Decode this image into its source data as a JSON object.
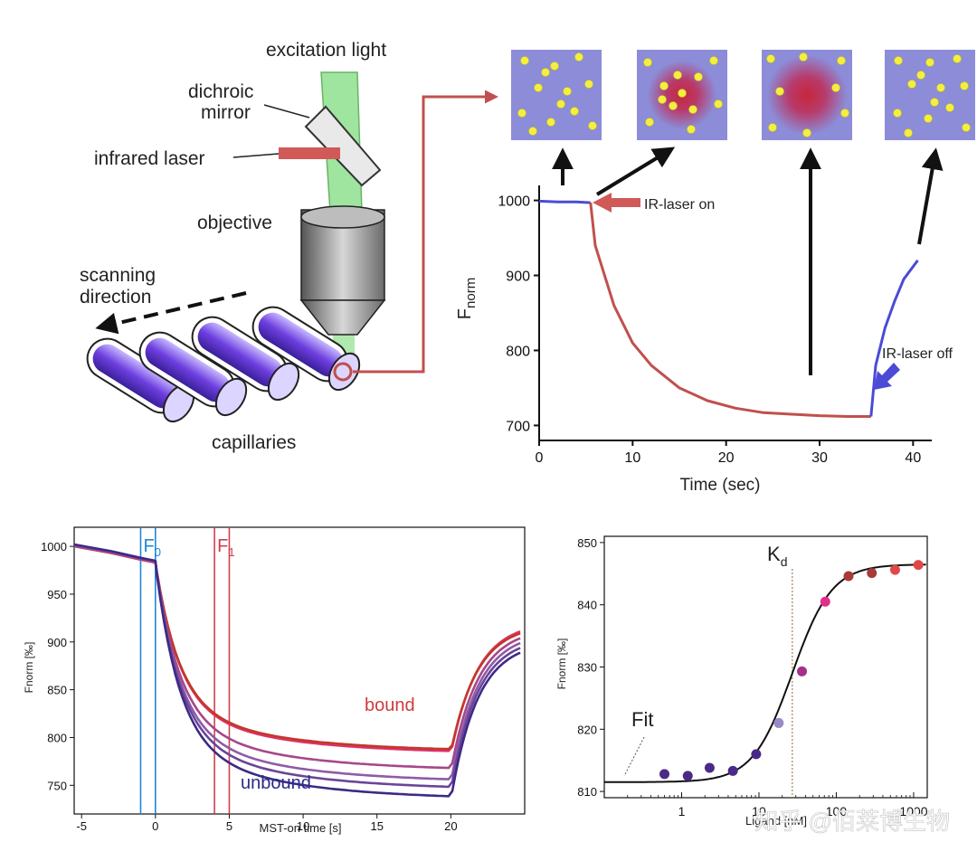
{
  "setup": {
    "excitation_light": "excitation light",
    "dichroic_mirror_1": "dichroic",
    "dichroic_mirror_2": "mirror",
    "infrared_laser": "infrared laser",
    "objective": "objective",
    "scanning_1": "scanning",
    "scanning_2": "direction",
    "capillaries": "capillaries"
  },
  "colors": {
    "red": "#c0504d",
    "blue": "#4b4bd6",
    "purple": "#4a2a86",
    "green": "#7fd07f",
    "pink": "#e0306a",
    "tile": "#8c8cd8"
  },
  "chart_data": [
    {
      "type": "line",
      "xlabel": "Time (sec)",
      "ylabel_main": "F",
      "ylabel_sub": "norm",
      "xlim": [
        0,
        42
      ],
      "ylim": [
        680,
        1020
      ],
      "xticks": [
        0,
        10,
        20,
        30,
        40
      ],
      "yticks": [
        700,
        800,
        900,
        1000
      ],
      "annotations": {
        "on": "IR-laser on",
        "off": "IR-laser off"
      },
      "series": [
        {
          "color": "#4b4bd6",
          "x": [
            0,
            2,
            4,
            5.5
          ],
          "y": [
            999,
            998,
            998,
            997
          ]
        },
        {
          "color": "#c0504d",
          "x": [
            5.5,
            6,
            8,
            10,
            12,
            15,
            18,
            21,
            24,
            27,
            30,
            33,
            35.5
          ],
          "y": [
            997,
            940,
            860,
            810,
            780,
            750,
            733,
            723,
            717,
            715,
            713,
            712,
            712
          ]
        },
        {
          "color": "#4b4bd6",
          "x": [
            35.5,
            36,
            37,
            38,
            39,
            40.5
          ],
          "y": [
            712,
            780,
            830,
            865,
            895,
            920
          ]
        }
      ]
    },
    {
      "type": "line",
      "xlabel": "MST-on time [s]",
      "ylabel": "Fnorm [‰]",
      "xlim": [
        -5.5,
        25
      ],
      "ylim": [
        720,
        1020
      ],
      "xticks": [
        -5,
        0,
        5,
        10,
        15,
        20
      ],
      "yticks": [
        750,
        800,
        850,
        900,
        950,
        1000
      ],
      "markers": [
        {
          "label": "F",
          "sub": "0",
          "color": "#1e88d8",
          "x": [
            -1,
            0
          ]
        },
        {
          "label": "F",
          "sub": "1",
          "color": "#d04050",
          "x": [
            4,
            5
          ]
        }
      ],
      "annotations": {
        "bound": "bound",
        "unbound": "unbound"
      },
      "pre": {
        "x": [
          -5.5,
          -3,
          -1,
          0
        ],
        "y": [
          1000,
          993,
          986,
          983
        ]
      },
      "series": [
        {
          "color": "#e0306a",
          "final": 783,
          "recovery": 912
        },
        {
          "color": "#c0392b",
          "final": 785,
          "recovery": 910
        },
        {
          "color": "#a6478a",
          "final": 765,
          "recovery": 905
        },
        {
          "color": "#8e5ba8",
          "final": 753,
          "recovery": 900
        },
        {
          "color": "#6a4498",
          "final": 745,
          "recovery": 895
        },
        {
          "color": "#3c2a86",
          "final": 735,
          "recovery": 890
        }
      ]
    },
    {
      "type": "scatter",
      "xlabel": "Ligand [nM]",
      "ylabel": "Fnorm [‰]",
      "xscale": "log",
      "xlim": [
        0.1,
        1500
      ],
      "ylim": [
        809,
        851
      ],
      "xticks": [
        1,
        10,
        100,
        1000
      ],
      "xticklabels": [
        "1",
        "10",
        "100",
        "1000"
      ],
      "yticks": [
        810,
        820,
        830,
        840,
        850
      ],
      "kd_label": "K",
      "kd_sub": "d",
      "fit_label": "Fit",
      "kd": 27,
      "fit": {
        "bottom": 811.5,
        "top": 846.5,
        "kd": 27,
        "hill": 1.7
      },
      "points": [
        {
          "x": 0.6,
          "y": 812.8,
          "color": "#4a2a86"
        },
        {
          "x": 1.2,
          "y": 812.5,
          "color": "#4a2a86"
        },
        {
          "x": 2.3,
          "y": 813.8,
          "color": "#4a2a86"
        },
        {
          "x": 4.6,
          "y": 813.3,
          "color": "#4a2a86"
        },
        {
          "x": 9.2,
          "y": 816.0,
          "color": "#4a2a86"
        },
        {
          "x": 18,
          "y": 821.0,
          "color": "#9a8ac8"
        },
        {
          "x": 36,
          "y": 829.3,
          "color": "#a3308a"
        },
        {
          "x": 72,
          "y": 840.5,
          "color": "#e0308a"
        },
        {
          "x": 144,
          "y": 844.6,
          "color": "#a83a3a"
        },
        {
          "x": 288,
          "y": 845.1,
          "color": "#a83a3a"
        },
        {
          "x": 576,
          "y": 845.6,
          "color": "#e04848"
        },
        {
          "x": 1150,
          "y": 846.4,
          "color": "#e04848"
        }
      ]
    }
  ],
  "watermark": "知乎 @佰莱博生物"
}
